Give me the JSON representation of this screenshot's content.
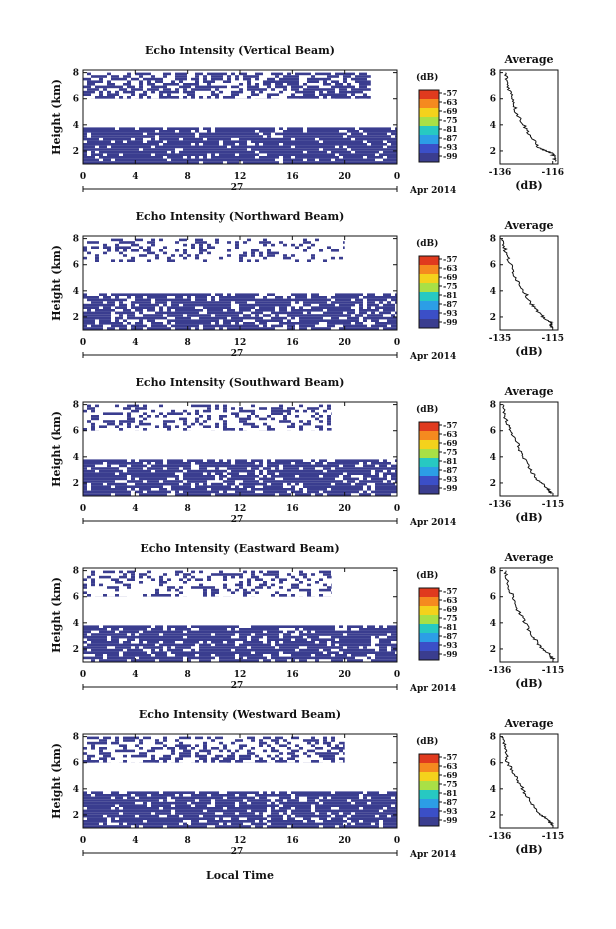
{
  "figure": {
    "date_label": "Apr 2014",
    "day_label": "27",
    "x_axis_label": "Local Time",
    "colorbar_unit": "(dB)",
    "average_title": "Average",
    "average_xlabel": "(dB)"
  },
  "chart_data": [
    {
      "type": "heatmap",
      "title": "Echo Intensity (Vertical Beam)",
      "ylabel": "Height (km)",
      "xlabel": "Local Time",
      "x_ticks": [
        "0",
        "4",
        "8",
        "12",
        "16",
        "20",
        "0"
      ],
      "x_range": [
        0,
        24
      ],
      "y_ticks": [
        "2",
        "4",
        "6",
        "8"
      ],
      "y_range": [
        1,
        8.2
      ],
      "colorbar": {
        "unit": "(dB)",
        "ticks": [
          "-57",
          "-63",
          "-69",
          "-75",
          "-81",
          "-87",
          "-93",
          "-99"
        ],
        "colors": [
          "#e03a1e",
          "#f58a1f",
          "#f4d21c",
          "#a9e046",
          "#27c9c2",
          "#2c9ee6",
          "#3b4fc7",
          "#3a3d8f"
        ]
      },
      "layers": [
        {
          "y_from": 6.0,
          "y_to": 8.0,
          "density": 0.6,
          "x_end": 22
        },
        {
          "y_from": 1.0,
          "y_to": 3.8,
          "density": 0.88,
          "x_end": 24
        }
      ],
      "average": {
        "title": "Average",
        "xlabel": "(dB)",
        "x_ticks": [
          "-136",
          "-116"
        ],
        "x_range": [
          -136,
          -114
        ],
        "y_ticks": [
          "2",
          "4",
          "6",
          "8"
        ],
        "profile": [
          [
            -134,
            8.0
          ],
          [
            -133,
            7.0
          ],
          [
            -131,
            6.0
          ],
          [
            -130,
            5.0
          ],
          [
            -127,
            4.0
          ],
          [
            -124,
            3.0
          ],
          [
            -121,
            2.2
          ],
          [
            -116,
            1.8
          ],
          [
            -115,
            1.2
          ]
        ]
      }
    },
    {
      "type": "heatmap",
      "title": "Echo Intensity (Northward Beam)",
      "ylabel": "Height (km)",
      "xlabel": "Local Time",
      "x_ticks": [
        "0",
        "4",
        "8",
        "12",
        "16",
        "20",
        "0"
      ],
      "x_range": [
        0,
        24
      ],
      "y_ticks": [
        "2",
        "4",
        "6",
        "8"
      ],
      "y_range": [
        1,
        8.2
      ],
      "colorbar": {
        "unit": "(dB)",
        "ticks": [
          "-57",
          "-63",
          "-69",
          "-75",
          "-81",
          "-87",
          "-93",
          "-99"
        ],
        "colors": [
          "#e03a1e",
          "#f58a1f",
          "#f4d21c",
          "#a9e046",
          "#27c9c2",
          "#2c9ee6",
          "#3b4fc7",
          "#3a3d8f"
        ]
      },
      "layers": [
        {
          "y_from": 6.2,
          "y_to": 8.0,
          "density": 0.3,
          "x_end": 20
        },
        {
          "y_from": 1.0,
          "y_to": 3.8,
          "density": 0.78,
          "x_end": 24
        }
      ],
      "average": {
        "title": "Average",
        "xlabel": "(dB)",
        "x_ticks": [
          "-135",
          "-115"
        ],
        "x_range": [
          -135,
          -113
        ],
        "y_ticks": [
          "2",
          "4",
          "6",
          "8"
        ],
        "profile": [
          [
            -134,
            8.0
          ],
          [
            -133,
            7.0
          ],
          [
            -131,
            6.0
          ],
          [
            -129,
            5.0
          ],
          [
            -126,
            4.0
          ],
          [
            -123,
            3.0
          ],
          [
            -120,
            2.2
          ],
          [
            -116,
            1.6
          ],
          [
            -115,
            1.2
          ]
        ]
      }
    },
    {
      "type": "heatmap",
      "title": "Echo Intensity (Southward Beam)",
      "ylabel": "Height (km)",
      "xlabel": "Local Time",
      "x_ticks": [
        "0",
        "4",
        "8",
        "12",
        "16",
        "20",
        "0"
      ],
      "x_range": [
        0,
        24
      ],
      "y_ticks": [
        "2",
        "4",
        "6",
        "8"
      ],
      "y_range": [
        1,
        8.2
      ],
      "colorbar": {
        "unit": "(dB)",
        "ticks": [
          "-57",
          "-63",
          "-69",
          "-75",
          "-81",
          "-87",
          "-93",
          "-99"
        ],
        "colors": [
          "#e03a1e",
          "#f58a1f",
          "#f4d21c",
          "#a9e046",
          "#27c9c2",
          "#2c9ee6",
          "#3b4fc7",
          "#3a3d8f"
        ]
      },
      "layers": [
        {
          "y_from": 6.0,
          "y_to": 8.0,
          "density": 0.32,
          "x_end": 19
        },
        {
          "y_from": 1.0,
          "y_to": 3.8,
          "density": 0.8,
          "x_end": 24
        }
      ],
      "average": {
        "title": "Average",
        "xlabel": "(dB)",
        "x_ticks": [
          "-136",
          "-115"
        ],
        "x_range": [
          -136,
          -113
        ],
        "y_ticks": [
          "2",
          "4",
          "6",
          "8"
        ],
        "profile": [
          [
            -135,
            8.0
          ],
          [
            -134,
            7.0
          ],
          [
            -132,
            6.0
          ],
          [
            -129,
            5.0
          ],
          [
            -127,
            4.0
          ],
          [
            -124,
            3.0
          ],
          [
            -121,
            2.2
          ],
          [
            -117,
            1.6
          ],
          [
            -116,
            1.2
          ]
        ]
      }
    },
    {
      "type": "heatmap",
      "title": "Echo Intensity (Eastward Beam)",
      "ylabel": "Height (km)",
      "xlabel": "Local Time",
      "x_ticks": [
        "0",
        "4",
        "8",
        "12",
        "16",
        "20",
        "0"
      ],
      "x_range": [
        0,
        24
      ],
      "y_ticks": [
        "2",
        "4",
        "6",
        "8"
      ],
      "y_range": [
        1,
        8.2
      ],
      "colorbar": {
        "unit": "(dB)",
        "ticks": [
          "-57",
          "-63",
          "-69",
          "-75",
          "-81",
          "-87",
          "-93",
          "-99"
        ],
        "colors": [
          "#e03a1e",
          "#f58a1f",
          "#f4d21c",
          "#a9e046",
          "#27c9c2",
          "#2c9ee6",
          "#3b4fc7",
          "#3a3d8f"
        ]
      },
      "layers": [
        {
          "y_from": 6.0,
          "y_to": 8.0,
          "density": 0.3,
          "x_end": 19
        },
        {
          "y_from": 1.0,
          "y_to": 3.8,
          "density": 0.8,
          "x_end": 24
        }
      ],
      "average": {
        "title": "Average",
        "xlabel": "(dB)",
        "x_ticks": [
          "-136",
          "-115"
        ],
        "x_range": [
          -136,
          -113
        ],
        "y_ticks": [
          "2",
          "4",
          "6",
          "8"
        ],
        "profile": [
          [
            -134,
            8.0
          ],
          [
            -133,
            7.0
          ],
          [
            -131,
            6.0
          ],
          [
            -129,
            5.0
          ],
          [
            -126,
            4.0
          ],
          [
            -123,
            3.0
          ],
          [
            -120,
            2.2
          ],
          [
            -116,
            1.5
          ],
          [
            -115,
            1.2
          ]
        ]
      }
    },
    {
      "type": "heatmap",
      "title": "Echo Intensity (Westward Beam)",
      "ylabel": "Height (km)",
      "xlabel": "Local Time",
      "x_ticks": [
        "0",
        "4",
        "8",
        "12",
        "16",
        "20",
        "0"
      ],
      "x_range": [
        0,
        24
      ],
      "y_ticks": [
        "2",
        "4",
        "6",
        "8"
      ],
      "y_range": [
        1,
        8.2
      ],
      "colorbar": {
        "unit": "(dB)",
        "ticks": [
          "-57",
          "-63",
          "-69",
          "-75",
          "-81",
          "-87",
          "-93",
          "-99"
        ],
        "colors": [
          "#e03a1e",
          "#f58a1f",
          "#f4d21c",
          "#a9e046",
          "#27c9c2",
          "#2c9ee6",
          "#3b4fc7",
          "#3a3d8f"
        ]
      },
      "layers": [
        {
          "y_from": 6.0,
          "y_to": 8.0,
          "density": 0.42,
          "x_end": 20
        },
        {
          "y_from": 1.0,
          "y_to": 3.8,
          "density": 0.85,
          "x_end": 24
        }
      ],
      "average": {
        "title": "Average",
        "xlabel": "(dB)",
        "x_ticks": [
          "-136",
          "-115"
        ],
        "x_range": [
          -136,
          -113
        ],
        "y_ticks": [
          "2",
          "4",
          "6",
          "8"
        ],
        "profile": [
          [
            -135,
            8.0
          ],
          [
            -134,
            7.0
          ],
          [
            -133,
            6.0
          ],
          [
            -130,
            5.0
          ],
          [
            -127,
            4.0
          ],
          [
            -124,
            3.0
          ],
          [
            -121,
            2.2
          ],
          [
            -117,
            1.6
          ],
          [
            -115,
            1.2
          ]
        ]
      }
    }
  ]
}
